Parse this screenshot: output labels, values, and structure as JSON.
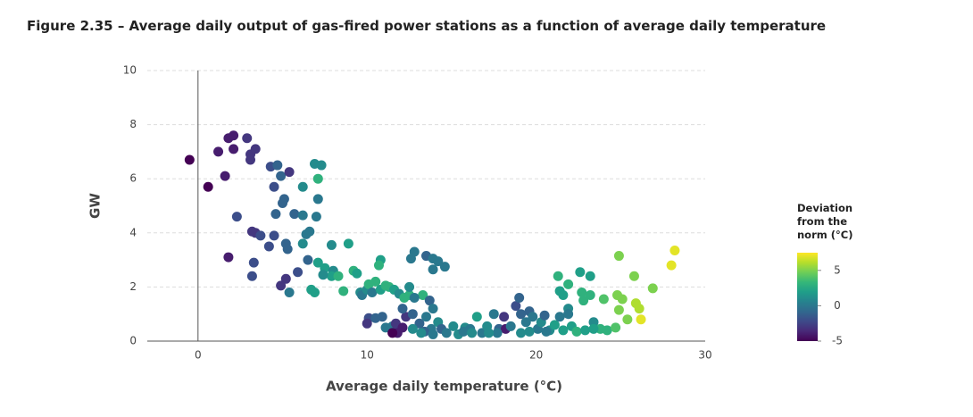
{
  "chart_data": {
    "type": "scatter",
    "title": "Figure 2.35 – Average daily output of gas-fired power stations as a function of average daily temperature",
    "x_label": "Average daily temperature (°C)",
    "y_label": "GW",
    "xlim": [
      -3,
      30
    ],
    "xticks": [
      0,
      10,
      20,
      30
    ],
    "ylim": [
      0,
      10
    ],
    "yticks": [
      0,
      2,
      4,
      6,
      8,
      10
    ],
    "grid": true,
    "colormap": "viridis",
    "colorbar": {
      "title": "Deviation from the norm (°C)",
      "lim": [
        -5,
        7.5
      ],
      "ticks": [
        -5,
        0,
        5
      ]
    },
    "x": [
      -0.5,
      0.6,
      1.2,
      1.6,
      1.8,
      2.1,
      2.1,
      2.9,
      3.1,
      3.1,
      3.4,
      2.3,
      1.8,
      3.2,
      3.4,
      3.7,
      3.3,
      3.2,
      4.3,
      4.7,
      4.9,
      4.5,
      5.1,
      5.0,
      5.4,
      4.6,
      4.5,
      4.2,
      5.2,
      5.3,
      5.7,
      6.2,
      6.2,
      6.9,
      7.3,
      7.1,
      7.1,
      7.0,
      6.6,
      6.4,
      6.2,
      6.5,
      5.9,
      5.2,
      4.9,
      5.4,
      6.7,
      6.9,
      7.1,
      7.5,
      8.0,
      7.9,
      7.4,
      7.9,
      8.9,
      8.6,
      8.3,
      9.2,
      9.4,
      9.6,
      9.7,
      10.0,
      10.1,
      10.5,
      10.8,
      10.7,
      10.3,
      10.8,
      11.1,
      11.3,
      11.6,
      11.9,
      12.2,
      12.5,
      13.3,
      12.5,
      12.6,
      12.8,
      13.5,
      13.9,
      13.9,
      14.2,
      14.6,
      12.8,
      13.7,
      13.9,
      10.1,
      10.0,
      10.5,
      10.9,
      11.1,
      11.5,
      11.7,
      11.8,
      12.1,
      12.3,
      12.1,
      12.7,
      13.1,
      13.5,
      13.8,
      14.2,
      14.4,
      14.7,
      15.1,
      15.4,
      15.8,
      16.1,
      16.5,
      16.8,
      17.1,
      17.5,
      17.8,
      18.1,
      18.2,
      18.5,
      18.8,
      19.0,
      19.1,
      19.4,
      19.6,
      19.8,
      20.1,
      20.3,
      20.5,
      20.8,
      21.1,
      21.4,
      21.3,
      21.4,
      21.6,
      21.9,
      21.9,
      21.9,
      22.1,
      22.4,
      22.6,
      22.7,
      22.8,
      23.2,
      23.2,
      23.4,
      23.8,
      24.0,
      24.2,
      24.7,
      24.9,
      24.8,
      24.9,
      25.1,
      25.4,
      25.8,
      25.9,
      26.1,
      26.2,
      26.9,
      28.0,
      28.2,
      13.4,
      13.9,
      11.5,
      17.7,
      15.7,
      16.2,
      17.2,
      19.1,
      19.6,
      20.6,
      21.6,
      22.9,
      23.4,
      13.2,
      12.7
    ],
    "values": [
      6.7,
      5.7,
      7.0,
      6.1,
      7.5,
      7.6,
      7.1,
      7.5,
      6.9,
      6.7,
      7.1,
      4.6,
      3.1,
      4.05,
      4.0,
      3.9,
      2.9,
      2.4,
      6.45,
      6.5,
      6.1,
      5.7,
      5.25,
      5.1,
      6.25,
      4.7,
      3.9,
      3.5,
      3.6,
      3.4,
      4.7,
      4.65,
      5.7,
      6.55,
      6.5,
      6.0,
      5.25,
      4.6,
      4.05,
      3.95,
      3.6,
      3.0,
      2.55,
      2.3,
      2.05,
      1.8,
      1.9,
      1.8,
      2.9,
      2.7,
      2.6,
      2.4,
      2.45,
      3.55,
      3.6,
      1.85,
      2.4,
      2.6,
      2.5,
      1.8,
      1.7,
      1.9,
      2.1,
      2.2,
      3.0,
      2.8,
      1.8,
      1.9,
      2.05,
      2.0,
      1.9,
      1.75,
      1.6,
      1.7,
      1.7,
      2.0,
      3.05,
      3.3,
      3.15,
      3.05,
      2.65,
      2.95,
      2.75,
      1.6,
      1.5,
      1.2,
      0.85,
      0.65,
      0.85,
      0.9,
      0.5,
      0.55,
      0.65,
      0.3,
      0.5,
      0.9,
      1.2,
      1.0,
      0.65,
      0.9,
      0.45,
      0.7,
      0.45,
      0.3,
      0.55,
      0.25,
      0.5,
      0.45,
      0.9,
      0.3,
      0.55,
      1.0,
      0.45,
      0.9,
      0.45,
      0.55,
      1.3,
      1.6,
      1.0,
      0.7,
      1.1,
      0.9,
      0.45,
      0.7,
      0.95,
      0.4,
      0.6,
      0.9,
      2.4,
      1.85,
      1.7,
      2.1,
      1.2,
      1.0,
      0.55,
      0.35,
      2.55,
      1.8,
      1.5,
      2.4,
      1.7,
      0.7,
      0.45,
      1.55,
      0.4,
      0.5,
      3.15,
      1.7,
      1.15,
      1.55,
      0.8,
      2.4,
      1.4,
      1.2,
      0.8,
      1.95,
      2.8,
      3.35,
      0.35,
      0.25,
      0.3,
      0.3,
      0.35,
      0.3,
      0.3,
      0.3,
      0.35,
      0.35,
      0.4,
      0.4,
      0.45,
      0.3,
      0.45
    ],
    "deviation": [
      -5,
      -5,
      -4,
      -4,
      -4,
      -4,
      -4,
      -3,
      -3,
      -3,
      -3,
      -2,
      -4,
      -3,
      -3,
      -2,
      -2,
      -2,
      -2,
      -1,
      -1,
      -2,
      -1,
      -1,
      -3,
      -1,
      -2,
      -2,
      -1,
      -1,
      -1,
      0,
      1,
      1,
      1,
      3,
      0,
      0,
      0,
      0,
      1,
      -1,
      -2,
      -3,
      -3,
      0,
      2,
      2,
      2,
      2,
      1,
      2,
      1,
      1,
      2,
      3,
      3,
      3,
      2,
      1,
      0,
      1,
      3,
      3,
      2,
      3,
      0,
      2,
      3,
      3,
      2,
      1,
      3,
      3,
      3,
      1,
      0,
      0,
      -1,
      0,
      0,
      0,
      0,
      0,
      -1,
      0,
      -2,
      -3,
      -1,
      -1,
      0,
      0,
      -3,
      -4,
      -4,
      -3,
      -1,
      -1,
      -1,
      0,
      0,
      1,
      -1,
      0,
      1,
      1,
      1,
      0,
      2,
      0,
      1,
      0,
      -1,
      -3,
      -4,
      0,
      -2,
      -1,
      -1,
      0,
      -1,
      0,
      0,
      1,
      -1,
      1,
      2,
      0,
      3,
      2,
      2,
      3,
      1,
      0,
      2,
      3,
      2,
      3,
      3,
      2,
      3,
      1,
      3,
      4,
      3,
      4,
      5,
      5,
      5,
      5,
      5,
      5,
      6,
      6,
      7,
      5,
      7,
      7,
      -1,
      0,
      -5,
      0,
      0,
      1,
      1,
      1,
      1,
      0,
      2,
      2,
      2,
      1,
      1
    ]
  }
}
